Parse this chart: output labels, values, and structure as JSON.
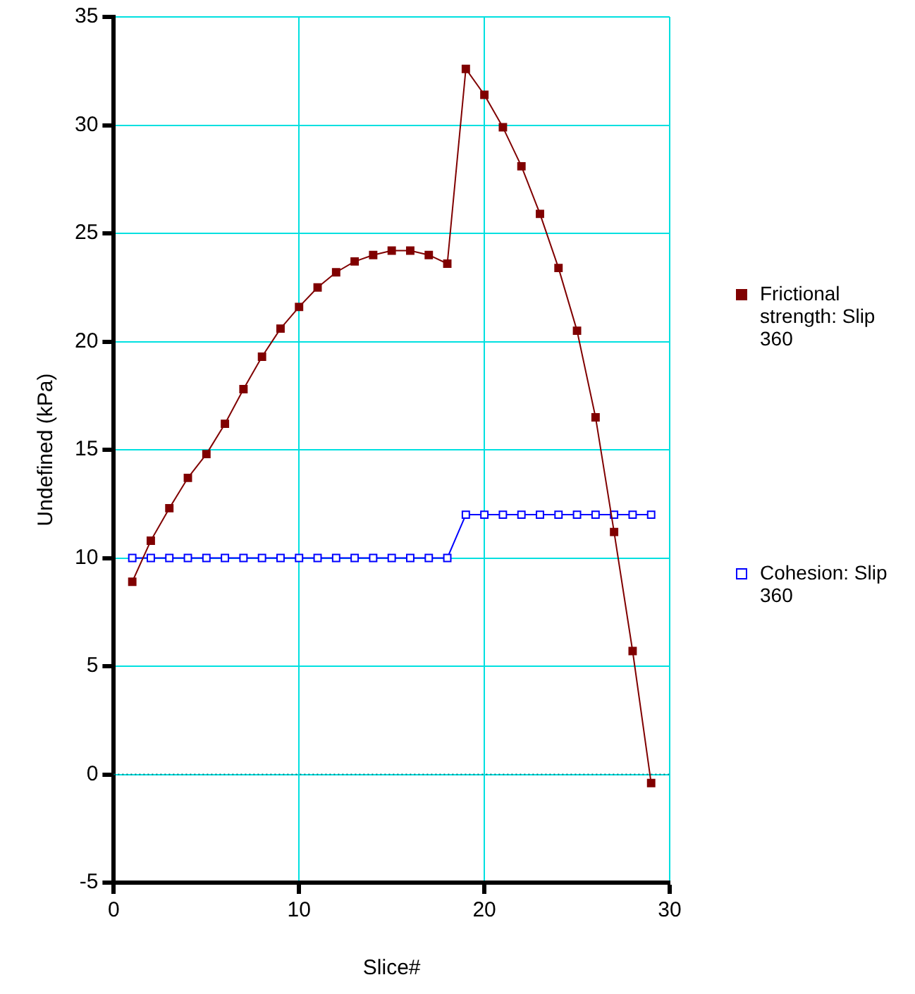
{
  "chart_data": {
    "type": "line",
    "xlabel": "Slice#",
    "ylabel": "Undefined (kPa)",
    "xlim": [
      0,
      30
    ],
    "xticks": [
      0,
      10,
      20,
      30
    ],
    "ylim": [
      -5,
      35
    ],
    "yticks": [
      -5,
      0,
      5,
      10,
      15,
      20,
      25,
      30,
      35
    ],
    "grid": true,
    "legend": "right",
    "marker": "square",
    "line_style": "solid",
    "ref_lines": [
      {
        "axis": "y",
        "value": 0,
        "color": "#008080",
        "line_style": "dotted"
      }
    ],
    "series": [
      {
        "name": "Frictional strength: Slip 360",
        "color": "#800000",
        "x": [
          1,
          2,
          3,
          4,
          5,
          6,
          7,
          8,
          9,
          10,
          11,
          12,
          13,
          14,
          15,
          16,
          17,
          18,
          19,
          20,
          21,
          22,
          23,
          24,
          25,
          26,
          27,
          28,
          29
        ],
        "values": [
          8.9,
          10.8,
          12.3,
          13.7,
          14.8,
          16.2,
          17.8,
          19.3,
          20.6,
          21.6,
          22.5,
          23.2,
          23.7,
          24.0,
          24.2,
          24.2,
          24.0,
          23.6,
          32.6,
          31.4,
          29.9,
          28.1,
          25.9,
          23.4,
          20.5,
          16.5,
          11.2,
          5.7,
          -0.4
        ]
      },
      {
        "name": "Cohesion: Slip 360",
        "color": "#0000ff",
        "x": [
          1,
          2,
          3,
          4,
          5,
          6,
          7,
          8,
          9,
          10,
          11,
          12,
          13,
          14,
          15,
          16,
          17,
          18,
          19,
          20,
          21,
          22,
          23,
          24,
          25,
          26,
          27,
          28,
          29
        ],
        "values": [
          10,
          10,
          10,
          10,
          10,
          10,
          10,
          10,
          10,
          10,
          10,
          10,
          10,
          10,
          10,
          10,
          10,
          10,
          12,
          12,
          12,
          12,
          12,
          12,
          12,
          12,
          12,
          12,
          12
        ]
      }
    ]
  }
}
